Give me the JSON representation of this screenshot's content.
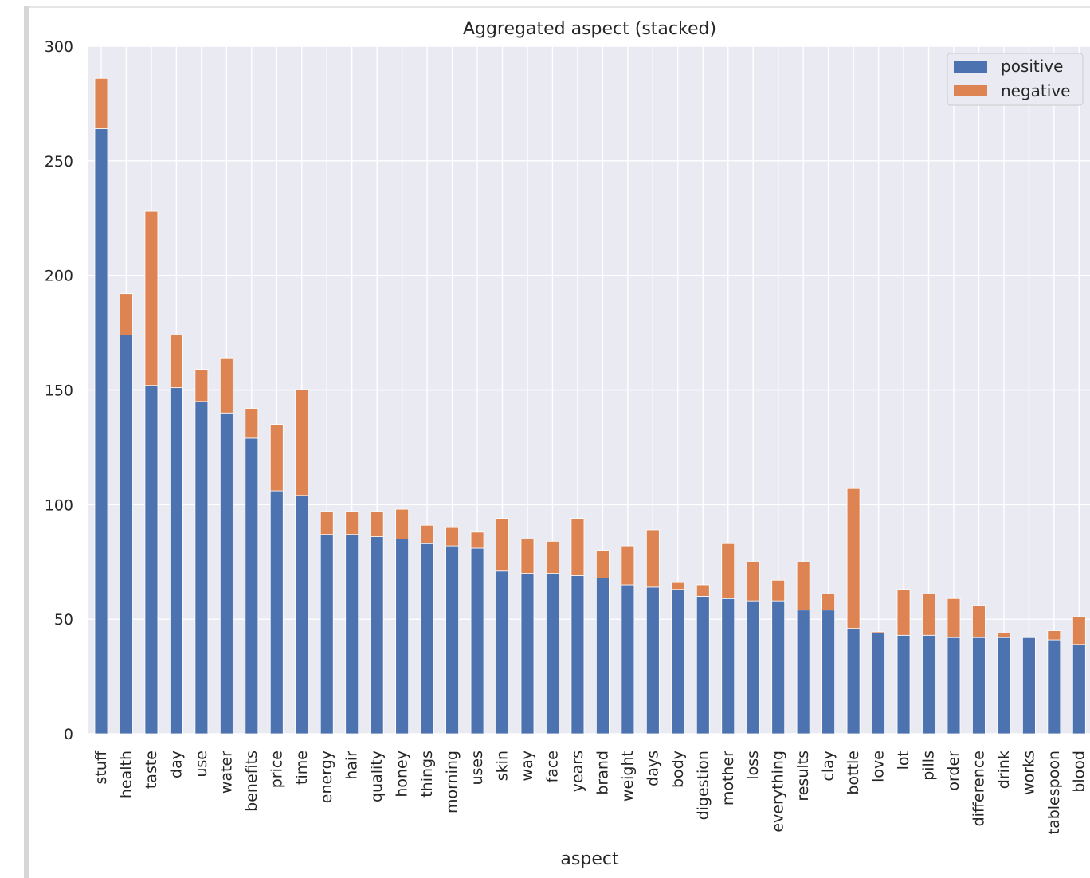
{
  "chart_data": {
    "type": "bar",
    "stacked": true,
    "title": "Aggregated aspect (stacked)",
    "xlabel": "aspect",
    "ylabel": "",
    "ylim": [
      0,
      300
    ],
    "yticks": [
      0,
      50,
      100,
      150,
      200,
      250,
      300
    ],
    "grid": true,
    "legend_position": "top-right",
    "categories": [
      "stuff",
      "health",
      "taste",
      "day",
      "use",
      "water",
      "benefits",
      "price",
      "time",
      "energy",
      "hair",
      "quality",
      "honey",
      "things",
      "morning",
      "uses",
      "skin",
      "way",
      "face",
      "years",
      "brand",
      "weight",
      "days",
      "body",
      "digestion",
      "mother",
      "loss",
      "everything",
      "results",
      "clay",
      "bottle",
      "love",
      "lot",
      "pills",
      "order",
      "difference",
      "drink",
      "works",
      "tablespoon",
      "blood"
    ],
    "series": [
      {
        "name": "positive",
        "color": "#4c72b0",
        "values": [
          264,
          174,
          152,
          151,
          145,
          140,
          129,
          106,
          104,
          87,
          87,
          86,
          85,
          83,
          82,
          81,
          71,
          70,
          70,
          69,
          68,
          65,
          64,
          63,
          60,
          59,
          58,
          58,
          54,
          54,
          46,
          44,
          43,
          43,
          42,
          42,
          42,
          42,
          41,
          39
        ]
      },
      {
        "name": "negative",
        "color": "#dd8452",
        "values": [
          22,
          18,
          76,
          23,
          14,
          24,
          13,
          29,
          46,
          10,
          10,
          11,
          13,
          8,
          8,
          7,
          23,
          15,
          14,
          25,
          12,
          17,
          25,
          3,
          5,
          24,
          17,
          9,
          21,
          7,
          61,
          0.5,
          20,
          18,
          17,
          14,
          2,
          0.3,
          4,
          12
        ]
      }
    ]
  }
}
